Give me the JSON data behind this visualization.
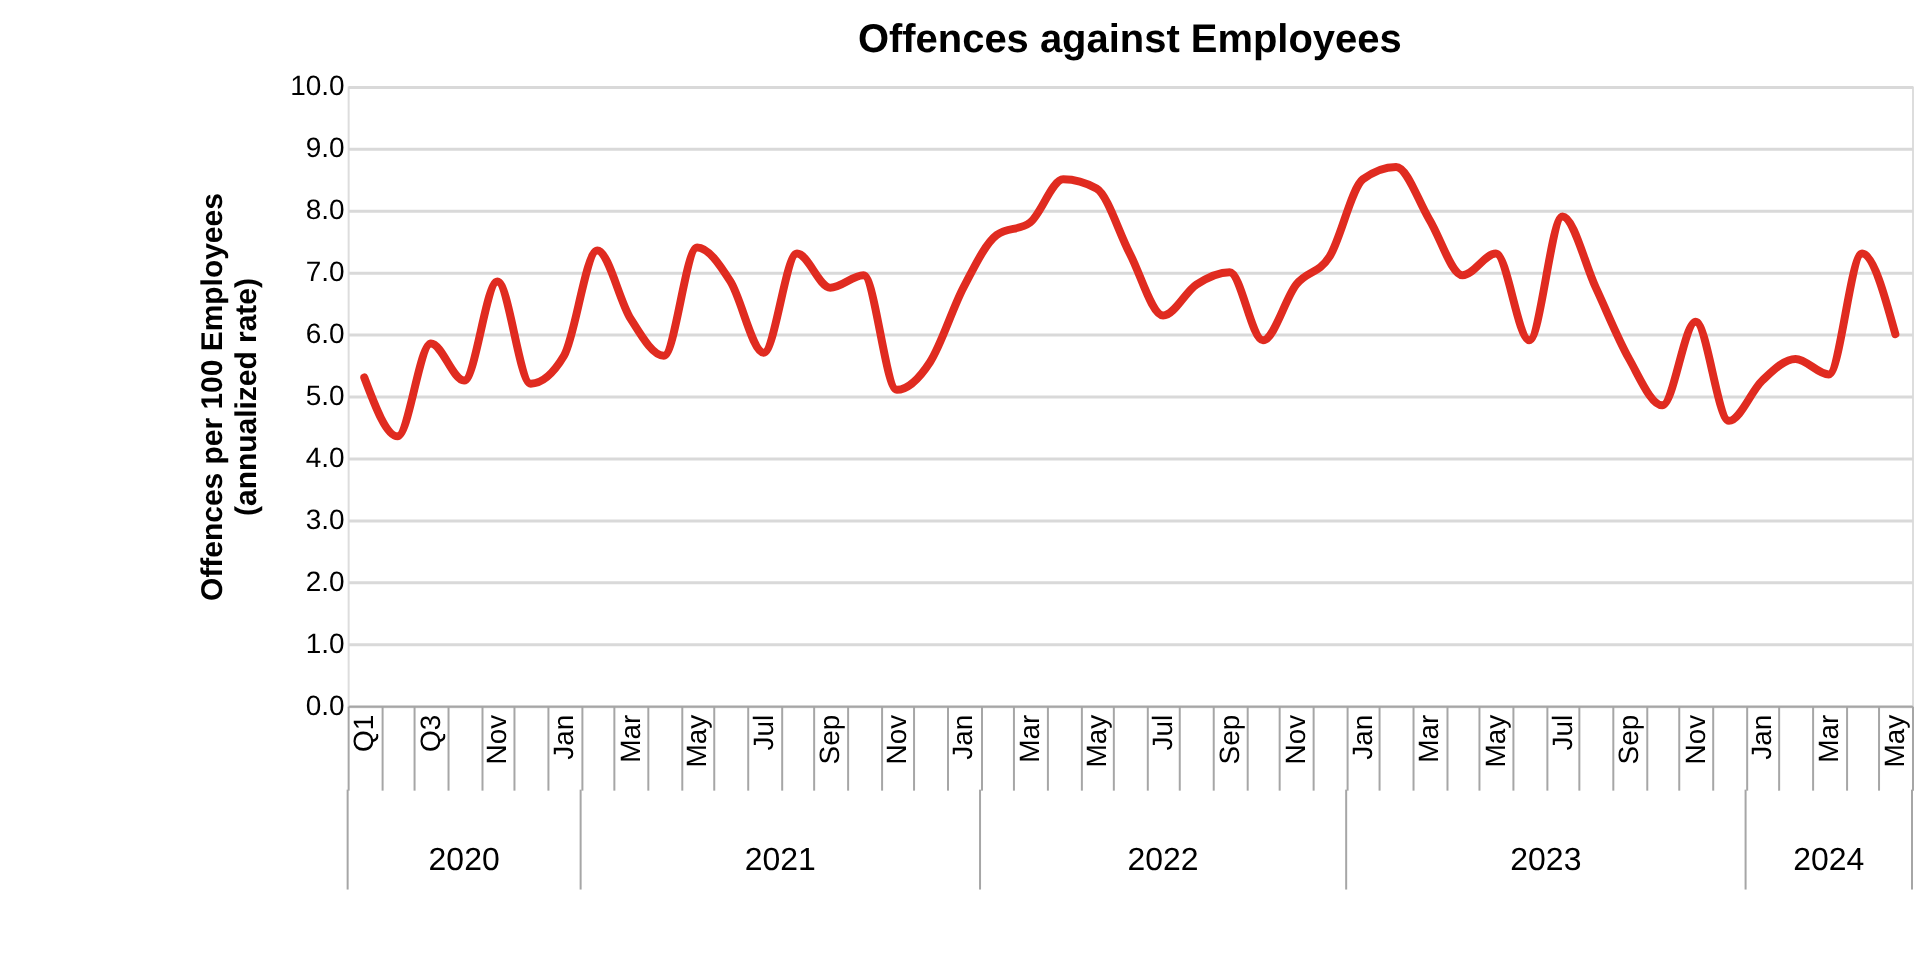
{
  "chart_data": {
    "type": "line",
    "title": "Offences against Employees",
    "ylabel": "Offences per 100 Employees\n(annualized rate)",
    "categories": [
      "Q1",
      null,
      "Q3",
      null,
      "Nov",
      null,
      "Jan",
      null,
      "Mar",
      null,
      "May",
      null,
      "Jul",
      null,
      "Sep",
      null,
      "Nov",
      null,
      "Jan",
      null,
      "Mar",
      null,
      "May",
      null,
      "Jul",
      null,
      "Sep",
      null,
      "Nov",
      null,
      "Jan",
      null,
      "Mar",
      null,
      "May",
      null,
      "Jul",
      null,
      "Sep",
      null,
      "Nov",
      null,
      "Jan",
      null,
      "Mar",
      null,
      "May"
    ],
    "series": [
      {
        "color": "#e02b20",
        "values": [
          5.3,
          4.35,
          5.85,
          5.25,
          6.85,
          5.2,
          5.65,
          7.35,
          6.25,
          5.65,
          7.4,
          6.85,
          5.7,
          7.3,
          6.75,
          6.95,
          5.1,
          5.55,
          6.75,
          7.6,
          7.8,
          8.5,
          8.35,
          7.3,
          6.3,
          6.8,
          7.0,
          5.9,
          6.8,
          7.25,
          8.5,
          8.7,
          7.85,
          6.95,
          7.3,
          5.9,
          7.9,
          6.75,
          5.6,
          4.85,
          6.2,
          4.6,
          5.25,
          5.6,
          5.35,
          7.3,
          6.0
        ]
      }
    ],
    "ylim": [
      0,
      10
    ],
    "yticks": [
      {
        "value": 0,
        "label": "0.0"
      },
      {
        "value": 1,
        "label": "1.0"
      },
      {
        "value": 2,
        "label": "2.0"
      },
      {
        "value": 3,
        "label": "3.0"
      },
      {
        "value": 4,
        "label": "4.0"
      },
      {
        "value": 5,
        "label": "5.0"
      },
      {
        "value": 6,
        "label": "6.0"
      },
      {
        "value": 7,
        "label": "7.0"
      },
      {
        "value": 8,
        "label": "8.0"
      },
      {
        "value": 9,
        "label": "9.0"
      },
      {
        "value": 10,
        "label": "10.0"
      }
    ],
    "annotations": [
      "2020",
      "2021",
      "2022",
      "2023",
      "2024"
    ],
    "grid": "y",
    "marker": "none",
    "line_style": "solid"
  }
}
